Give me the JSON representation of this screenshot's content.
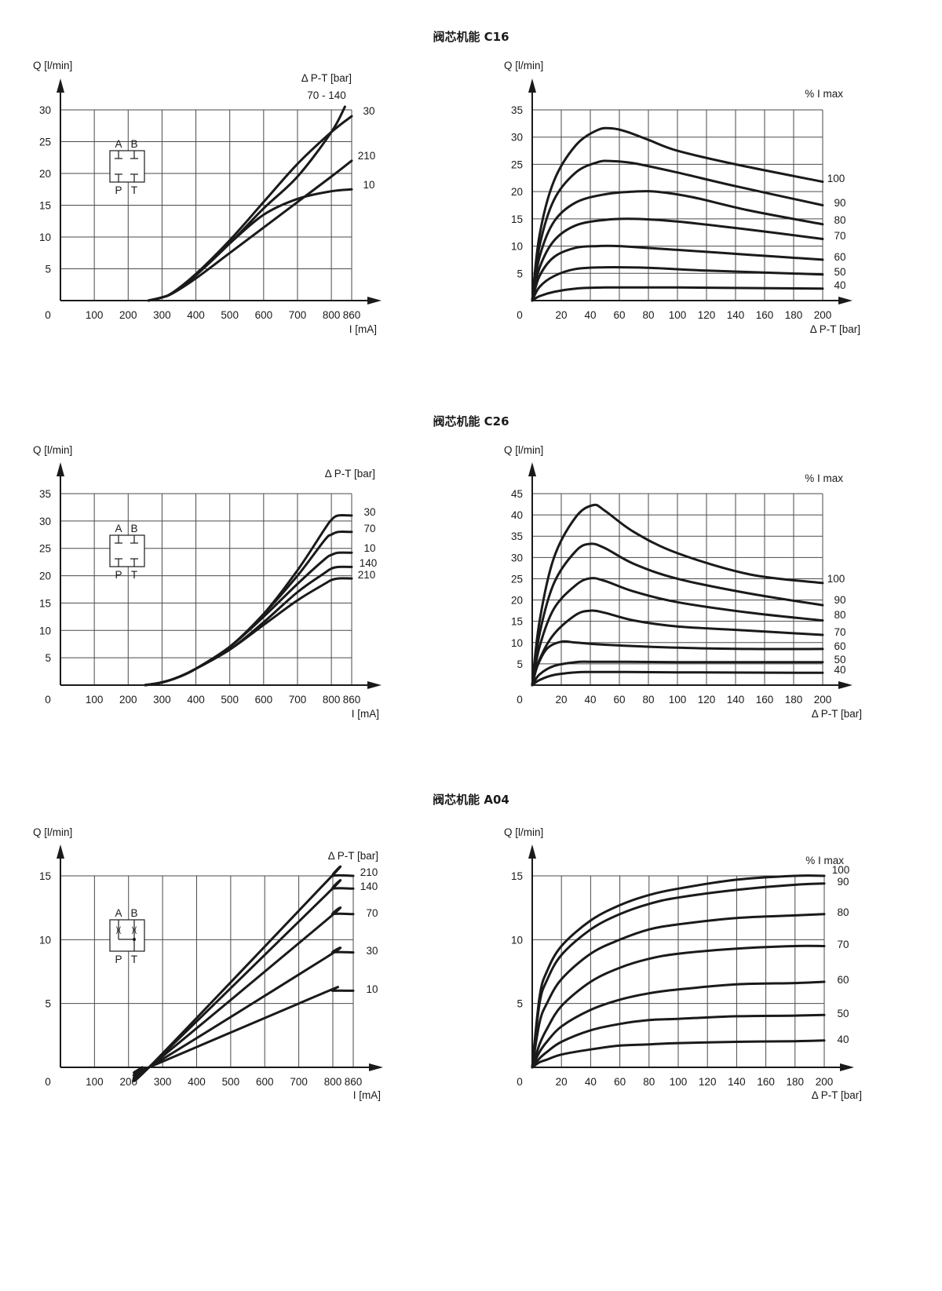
{
  "sections": [
    {
      "title": "阀芯机能 C16"
    },
    {
      "title": "阀芯机能 C26"
    },
    {
      "title": "阀芯机能 A04"
    }
  ],
  "chart_data": [
    {
      "type": "line",
      "xlabel": "I [mA]",
      "ylabel": "Q [l/min]",
      "legend_title": "Δ P-T [bar]",
      "xlim": [
        0,
        860
      ],
      "ylim": [
        0,
        30
      ],
      "xticks": [
        0,
        100,
        200,
        300,
        400,
        500,
        600,
        700,
        800,
        860
      ],
      "yticks": [
        5,
        10,
        15,
        20,
        25,
        30
      ],
      "symbol": {
        "ports_top": [
          "A",
          "B"
        ],
        "ports_bottom": [
          "P",
          "T"
        ],
        "kind": "closed"
      },
      "series": [
        {
          "name": "70 - 140",
          "x": [
            260,
            300,
            330,
            400,
            500,
            600,
            700,
            800,
            840
          ],
          "y": [
            0,
            0.5,
            1.2,
            4,
            9,
            14.5,
            19.5,
            26.5,
            30.5
          ]
        },
        {
          "name": "30",
          "x": [
            260,
            300,
            330,
            400,
            500,
            600,
            700,
            800,
            860
          ],
          "y": [
            0,
            0.5,
            1.2,
            4.2,
            9.5,
            15.5,
            21.5,
            26.5,
            29
          ]
        },
        {
          "name": "210",
          "x": [
            260,
            300,
            330,
            400,
            500,
            600,
            700,
            800,
            860
          ],
          "y": [
            0,
            0.5,
            1.1,
            3.5,
            7.5,
            11.5,
            15.5,
            19.5,
            22
          ]
        },
        {
          "name": "10",
          "x": [
            260,
            300,
            330,
            400,
            500,
            600,
            700,
            800,
            860
          ],
          "y": [
            0,
            0.5,
            1.2,
            4,
            9,
            13.5,
            16,
            17.2,
            17.5
          ]
        }
      ]
    },
    {
      "type": "line",
      "xlabel": "Δ P-T [bar]",
      "ylabel": "Q [l/min]",
      "legend_title": "% I max",
      "xlim": [
        0,
        200
      ],
      "ylim": [
        0,
        35
      ],
      "xticks": [
        0,
        20,
        40,
        60,
        80,
        100,
        120,
        140,
        160,
        180,
        200
      ],
      "yticks": [
        5,
        10,
        15,
        20,
        25,
        30,
        35
      ],
      "series": [
        {
          "name": "100",
          "x": [
            0,
            5,
            15,
            30,
            45,
            55,
            65,
            80,
            100,
            140,
            200
          ],
          "y": [
            0,
            12,
            22,
            28.5,
            31.3,
            31.6,
            31,
            29.5,
            27.5,
            25,
            21.8
          ]
        },
        {
          "name": "90",
          "x": [
            0,
            5,
            15,
            30,
            45,
            55,
            70,
            100,
            140,
            200
          ],
          "y": [
            0,
            10,
            18.5,
            23.5,
            25.4,
            25.6,
            25.2,
            23.5,
            21,
            17.5
          ]
        },
        {
          "name": "80",
          "x": [
            0,
            5,
            15,
            30,
            50,
            70,
            85,
            110,
            150,
            200
          ],
          "y": [
            0,
            8,
            14.5,
            18,
            19.5,
            20,
            20,
            19,
            16.5,
            14
          ]
        },
        {
          "name": "70",
          "x": [
            0,
            5,
            15,
            30,
            50,
            70,
            100,
            150,
            200
          ],
          "y": [
            0,
            6,
            11,
            13.8,
            14.8,
            15,
            14.5,
            13,
            11.3
          ]
        },
        {
          "name": "60",
          "x": [
            0,
            5,
            15,
            30,
            45,
            60,
            100,
            150,
            200
          ],
          "y": [
            0,
            4.5,
            8,
            9.7,
            10,
            10,
            9.3,
            8.4,
            7.5
          ]
        },
        {
          "name": "50",
          "x": [
            0,
            5,
            15,
            30,
            50,
            80,
            120,
            200
          ],
          "y": [
            0,
            2.5,
            4.5,
            5.8,
            6.1,
            6,
            5.5,
            4.8
          ]
        },
        {
          "name": "40",
          "x": [
            0,
            5,
            15,
            30,
            50,
            100,
            200
          ],
          "y": [
            0,
            0.8,
            1.6,
            2.2,
            2.4,
            2.4,
            2.2
          ]
        }
      ]
    },
    {
      "type": "line",
      "xlabel": "I [mA]",
      "ylabel": "Q [l/min]",
      "legend_title": "Δ P-T [bar]",
      "xlim": [
        0,
        860
      ],
      "ylim": [
        0,
        35
      ],
      "xticks": [
        0,
        100,
        200,
        300,
        400,
        500,
        600,
        700,
        800,
        860
      ],
      "yticks": [
        5,
        10,
        15,
        20,
        25,
        30,
        35
      ],
      "symbol": {
        "ports_top": [
          "A",
          "B"
        ],
        "ports_bottom": [
          "P",
          "T"
        ],
        "kind": "closed"
      },
      "series": [
        {
          "name": "30",
          "x": [
            250,
            300,
            350,
            400,
            500,
            600,
            700,
            780,
            800,
            820,
            860
          ],
          "y": [
            0,
            0.5,
            1.5,
            3,
            7,
            13,
            21,
            28.5,
            30.2,
            31,
            31
          ]
        },
        {
          "name": "70",
          "x": [
            250,
            300,
            350,
            400,
            500,
            600,
            700,
            780,
            800,
            820,
            860
          ],
          "y": [
            0,
            0.5,
            1.5,
            3,
            7,
            13,
            20,
            26.5,
            27.5,
            28,
            28
          ]
        },
        {
          "name": "10",
          "x": [
            250,
            300,
            350,
            400,
            500,
            600,
            700,
            780,
            800,
            820,
            860
          ],
          "y": [
            0,
            0.5,
            1.5,
            3,
            7,
            12.5,
            18.5,
            23,
            23.8,
            24.2,
            24.2
          ]
        },
        {
          "name": "140",
          "x": [
            250,
            300,
            350,
            400,
            500,
            600,
            700,
            780,
            800,
            820,
            860
          ],
          "y": [
            0,
            0.5,
            1.5,
            3,
            6.5,
            11.5,
            17,
            20.5,
            21.3,
            21.6,
            21.6
          ]
        },
        {
          "name": "210",
          "x": [
            250,
            300,
            350,
            400,
            500,
            600,
            700,
            780,
            800,
            820,
            860
          ],
          "y": [
            0,
            0.5,
            1.5,
            3,
            6.5,
            11,
            15.5,
            18.5,
            19.2,
            19.5,
            19.5
          ]
        }
      ]
    },
    {
      "type": "line",
      "xlabel": "Δ P-T [bar]",
      "ylabel": "Q [l/min]",
      "legend_title": "% I max",
      "xlim": [
        0,
        200
      ],
      "ylim": [
        0,
        45
      ],
      "xticks": [
        0,
        20,
        40,
        60,
        80,
        100,
        120,
        140,
        160,
        180,
        200
      ],
      "yticks": [
        5,
        10,
        15,
        20,
        25,
        30,
        35,
        40,
        45
      ],
      "series": [
        {
          "name": "100",
          "x": [
            0,
            5,
            15,
            30,
            42,
            50,
            70,
            100,
            150,
            200
          ],
          "y": [
            0,
            15,
            30,
            39.5,
            42.3,
            41,
            36,
            31,
            26,
            24
          ]
        },
        {
          "name": "90",
          "x": [
            0,
            5,
            15,
            30,
            40,
            50,
            70,
            100,
            150,
            200
          ],
          "y": [
            0,
            12,
            24,
            31.5,
            33.2,
            32.2,
            28.5,
            25,
            21.5,
            18.8
          ]
        },
        {
          "name": "80",
          "x": [
            0,
            5,
            15,
            30,
            40,
            50,
            70,
            100,
            150,
            200
          ],
          "y": [
            0,
            9,
            18,
            23.5,
            25.1,
            24.5,
            22,
            19.5,
            17,
            15.2
          ]
        },
        {
          "name": "70",
          "x": [
            0,
            5,
            15,
            30,
            40,
            50,
            70,
            100,
            150,
            200
          ],
          "y": [
            0,
            6,
            12,
            16.5,
            17.5,
            17,
            15.2,
            13.8,
            12.8,
            11.8
          ]
        },
        {
          "name": "60",
          "x": [
            0,
            3,
            10,
            20,
            30,
            50,
            100,
            150,
            200
          ],
          "y": [
            0,
            4,
            8.5,
            10.2,
            10,
            9.5,
            8.8,
            8.5,
            8.5
          ]
        },
        {
          "name": "50",
          "x": [
            0,
            5,
            15,
            30,
            40,
            60,
            100,
            200
          ],
          "y": [
            0,
            2.5,
            4.5,
            5.4,
            5.5,
            5.5,
            5.4,
            5.4
          ]
        },
        {
          "name": "40",
          "x": [
            0,
            5,
            15,
            30,
            40,
            60,
            100,
            200
          ],
          "y": [
            0,
            1.2,
            2.4,
            3,
            3.1,
            3.1,
            3,
            2.9
          ]
        }
      ]
    },
    {
      "type": "line",
      "xlabel": "I [mA]",
      "ylabel": "Q [l/min]",
      "legend_title": "Δ P-T [bar]",
      "xlim": [
        0,
        860
      ],
      "ylim": [
        0,
        15
      ],
      "xticks": [
        0,
        100,
        200,
        300,
        400,
        500,
        600,
        700,
        800,
        860
      ],
      "yticks": [
        5,
        10,
        15
      ],
      "symbol": {
        "ports_top": [
          "A",
          "B"
        ],
        "ports_bottom": [
          "P",
          "T"
        ],
        "kind": "orifice"
      },
      "series": [
        {
          "name": "210",
          "x": [
            240,
            260,
            780,
            800,
            860
          ],
          "y": [
            0,
            0,
            14.5,
            15,
            15
          ]
        },
        {
          "name": "140",
          "x": [
            240,
            260,
            780,
            800,
            860
          ],
          "y": [
            0,
            0,
            13.5,
            14,
            14
          ]
        },
        {
          "name": "70",
          "x": [
            240,
            260,
            780,
            800,
            860
          ],
          "y": [
            0,
            0,
            11.5,
            12,
            12
          ]
        },
        {
          "name": "30",
          "x": [
            240,
            260,
            780,
            800,
            860
          ],
          "y": [
            0,
            0,
            8.6,
            9,
            9
          ]
        },
        {
          "name": "10",
          "x": [
            240,
            260,
            770,
            800,
            860
          ],
          "y": [
            0,
            0,
            5.8,
            6,
            6
          ]
        }
      ]
    },
    {
      "type": "line",
      "xlabel": "Δ P-T [bar]",
      "ylabel": "Q [l/min]",
      "legend_title": "% I max",
      "xlim": [
        0,
        200
      ],
      "ylim": [
        0,
        15
      ],
      "xticks": [
        0,
        20,
        40,
        60,
        80,
        100,
        120,
        140,
        160,
        180,
        200
      ],
      "yticks": [
        5,
        10,
        15
      ],
      "series": [
        {
          "name": "100",
          "x": [
            0,
            5,
            10,
            20,
            40,
            60,
            80,
            100,
            140,
            180,
            200
          ],
          "y": [
            0,
            5.5,
            7.5,
            9.5,
            11.5,
            12.7,
            13.5,
            14,
            14.7,
            15,
            15
          ]
        },
        {
          "name": "90",
          "x": [
            0,
            5,
            10,
            20,
            40,
            60,
            80,
            100,
            140,
            180,
            200
          ],
          "y": [
            0,
            5,
            6.8,
            8.8,
            10.8,
            12,
            12.8,
            13.3,
            13.9,
            14.3,
            14.4
          ]
        },
        {
          "name": "80",
          "x": [
            0,
            5,
            10,
            20,
            40,
            60,
            80,
            100,
            140,
            180,
            200
          ],
          "y": [
            0,
            3.5,
            5,
            6.9,
            8.9,
            10,
            10.8,
            11.2,
            11.7,
            11.9,
            12
          ]
        },
        {
          "name": "70",
          "x": [
            0,
            5,
            10,
            20,
            40,
            60,
            80,
            100,
            140,
            180,
            200
          ],
          "y": [
            0,
            1.8,
            3,
            4.8,
            6.7,
            7.8,
            8.5,
            8.9,
            9.3,
            9.5,
            9.5
          ]
        },
        {
          "name": "60",
          "x": [
            0,
            5,
            10,
            20,
            40,
            60,
            80,
            100,
            140,
            180,
            200
          ],
          "y": [
            0,
            1.2,
            2,
            3.2,
            4.5,
            5.3,
            5.8,
            6.1,
            6.5,
            6.6,
            6.7
          ]
        },
        {
          "name": "50",
          "x": [
            0,
            5,
            10,
            20,
            40,
            60,
            80,
            100,
            140,
            180,
            200
          ],
          "y": [
            0,
            0.7,
            1.2,
            2,
            2.9,
            3.4,
            3.7,
            3.8,
            4,
            4.05,
            4.1
          ]
        },
        {
          "name": "40",
          "x": [
            0,
            5,
            10,
            20,
            40,
            60,
            80,
            100,
            140,
            180,
            200
          ],
          "y": [
            0,
            0.4,
            0.6,
            1,
            1.4,
            1.7,
            1.8,
            1.9,
            2,
            2.05,
            2.1
          ]
        }
      ]
    }
  ]
}
